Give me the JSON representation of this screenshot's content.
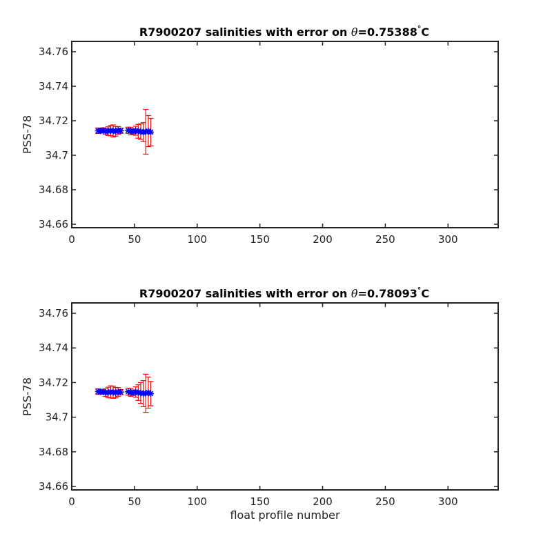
{
  "chart_data": [
    {
      "type": "scatter",
      "title_prefix": "R7900207 salinities with error on ",
      "theta_symbol": "θ",
      "theta_value": "=0.75388",
      "degree_symbol": "°",
      "temp_unit": "C",
      "xlabel": "",
      "ylabel": "PSS-78",
      "xlim": [
        0,
        340
      ],
      "ylim": [
        34.658,
        34.766
      ],
      "xticks": [
        "0",
        "50",
        "100",
        "150",
        "200",
        "250",
        "300"
      ],
      "yticks": [
        "34.66",
        "34.68",
        "34.7",
        "34.72",
        "34.74",
        "34.76"
      ],
      "grid": false,
      "colors": {
        "error": "#ff0000",
        "marker": "#0000ff",
        "reference": "#00aa00"
      },
      "points": [
        {
          "x": 21,
          "y": 34.7142,
          "err": 0.0016
        },
        {
          "x": 23,
          "y": 34.7141,
          "err": 0.0012
        },
        {
          "x": 25,
          "y": 34.7145,
          "err": 0.0014
        },
        {
          "x": 27,
          "y": 34.7138,
          "err": 0.0018
        },
        {
          "x": 29,
          "y": 34.714,
          "err": 0.0025
        },
        {
          "x": 31,
          "y": 34.7143,
          "err": 0.003
        },
        {
          "x": 33,
          "y": 34.7141,
          "err": 0.0035
        },
        {
          "x": 35,
          "y": 34.7139,
          "err": 0.0028
        },
        {
          "x": 37,
          "y": 34.7144,
          "err": 0.0022
        },
        {
          "x": 39,
          "y": 34.7142,
          "err": 0.0015
        },
        {
          "x": 45,
          "y": 34.7145,
          "err": 0.0018
        },
        {
          "x": 47,
          "y": 34.714,
          "err": 0.0022
        },
        {
          "x": 49,
          "y": 34.7138,
          "err": 0.0015
        },
        {
          "x": 51,
          "y": 34.7142,
          "err": 0.0026
        },
        {
          "x": 53,
          "y": 34.7139,
          "err": 0.004
        },
        {
          "x": 55,
          "y": 34.7137,
          "err": 0.0045
        },
        {
          "x": 57,
          "y": 34.7134,
          "err": 0.0055
        },
        {
          "x": 59,
          "y": 34.7136,
          "err": 0.013
        },
        {
          "x": 61,
          "y": 34.714,
          "err": 0.009
        },
        {
          "x": 63,
          "y": 34.7134,
          "err": 0.008
        }
      ]
    },
    {
      "type": "scatter",
      "title_prefix": "R7900207 salinities with error on ",
      "theta_symbol": "θ",
      "theta_value": "=0.78093",
      "degree_symbol": "°",
      "temp_unit": "C",
      "xlabel": "float profile number",
      "ylabel": "PSS-78",
      "xlim": [
        0,
        340
      ],
      "ylim": [
        34.658,
        34.766
      ],
      "xticks": [
        "0",
        "50",
        "100",
        "150",
        "200",
        "250",
        "300"
      ],
      "yticks": [
        "34.66",
        "34.68",
        "34.7",
        "34.72",
        "34.74",
        "34.76"
      ],
      "grid": false,
      "colors": {
        "error": "#ff0000",
        "marker": "#0000ff",
        "reference": "#00aa00"
      },
      "points": [
        {
          "x": 21,
          "y": 34.7148,
          "err": 0.0016
        },
        {
          "x": 23,
          "y": 34.7146,
          "err": 0.0014
        },
        {
          "x": 25,
          "y": 34.7147,
          "err": 0.0013
        },
        {
          "x": 27,
          "y": 34.7142,
          "err": 0.0022
        },
        {
          "x": 29,
          "y": 34.7143,
          "err": 0.003
        },
        {
          "x": 31,
          "y": 34.7146,
          "err": 0.0035
        },
        {
          "x": 33,
          "y": 34.7144,
          "err": 0.0035
        },
        {
          "x": 35,
          "y": 34.7142,
          "err": 0.003
        },
        {
          "x": 37,
          "y": 34.7146,
          "err": 0.0025
        },
        {
          "x": 39,
          "y": 34.7145,
          "err": 0.0015
        },
        {
          "x": 45,
          "y": 34.7147,
          "err": 0.002
        },
        {
          "x": 47,
          "y": 34.7143,
          "err": 0.0022
        },
        {
          "x": 49,
          "y": 34.7141,
          "err": 0.0016
        },
        {
          "x": 51,
          "y": 34.7145,
          "err": 0.003
        },
        {
          "x": 53,
          "y": 34.7142,
          "err": 0.0045
        },
        {
          "x": 55,
          "y": 34.714,
          "err": 0.006
        },
        {
          "x": 57,
          "y": 34.7136,
          "err": 0.0075
        },
        {
          "x": 59,
          "y": 34.7138,
          "err": 0.011
        },
        {
          "x": 61,
          "y": 34.7142,
          "err": 0.009
        },
        {
          "x": 63,
          "y": 34.7136,
          "err": 0.007
        }
      ]
    }
  ]
}
